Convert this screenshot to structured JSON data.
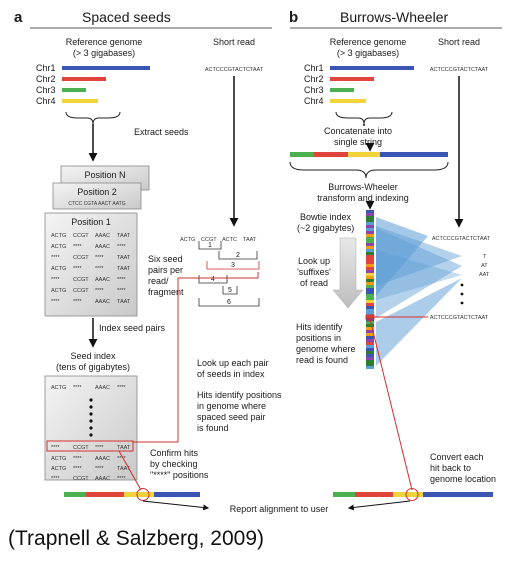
{
  "panel_a": {
    "letter": "a",
    "title": "Spaced seeds",
    "ref_genome_line1": "Reference genome",
    "ref_genome_line2": "(> 3 gigabases)",
    "short_read_label": "Short read",
    "short_read_seq": "ACTCCCGTACTCTAAT",
    "chromosomes": [
      {
        "label": "Chr1",
        "color": "#3b55b5"
      },
      {
        "label": "Chr2",
        "color": "#e0443a"
      },
      {
        "label": "Chr3",
        "color": "#4caf50"
      },
      {
        "label": "Chr4",
        "color": "#f2d43a"
      }
    ],
    "extract_seeds": "Extract seeds",
    "position_n": "Position N",
    "position_2": "Position 2",
    "position_2_seq": "CTCC CGTA AACT AATG",
    "position_1": "Position 1",
    "seed_rows": [
      [
        "ACTG",
        "CCGT",
        "AAAC",
        "TAAT"
      ],
      [
        "ACTG",
        "****",
        "AAAC",
        "****"
      ],
      [
        "****",
        "CCGT",
        "****",
        "TAAT"
      ],
      [
        "ACTG",
        "****",
        "****",
        "TAAT"
      ],
      [
        "****",
        "CCGT",
        "AAAC",
        "****"
      ],
      [
        "ACTG",
        "CCGT",
        "****",
        "****"
      ],
      [
        "****",
        "****",
        "AAAC",
        "TAAT"
      ]
    ],
    "read_seeds": [
      "ACTG",
      "CCGT",
      "ACTC",
      "TAAT"
    ],
    "pair_numbers": [
      "1",
      "2",
      "3",
      "4",
      "5",
      "6"
    ],
    "six_seed_pairs": [
      "Six seed",
      "pairs per",
      "read/",
      "fragment"
    ],
    "index_seed_pairs": "Index seed pairs",
    "seed_index_line1": "Seed index",
    "seed_index_line2": "(tens of gigabytes)",
    "index_rows_top": [
      "ACTG",
      "****",
      "AAAC",
      "****"
    ],
    "index_row_hit": [
      "****",
      "CCGT",
      "****",
      "TAAT"
    ],
    "index_rows_bottom": [
      [
        "ACTG",
        "****",
        "AAAC",
        "****"
      ],
      [
        "ACTG",
        "****",
        "****",
        "TAAT"
      ],
      [
        "****",
        "CCGT",
        "AAAC",
        "****"
      ]
    ],
    "lookup_text": [
      "Look up each pair",
      "of seeds in index"
    ],
    "hits_text": [
      "Hits identify positions",
      "in genome where",
      "spaced seed pair",
      "is found"
    ],
    "confirm_text": [
      "Confirm hits",
      "by checking",
      "\"****\" positions"
    ]
  },
  "panel_b": {
    "letter": "b",
    "title": "Burrows-Wheeler",
    "ref_genome_line1": "Reference genome",
    "ref_genome_line2": "(> 3 gigabases)",
    "short_read_label": "Short read",
    "short_read_seq": "ACTCCCGTACTCTAAT",
    "concat_text": [
      "Concatenate into",
      "single string"
    ],
    "bw_text": [
      "Burrows-Wheeler",
      "transform and indexing"
    ],
    "bowtie_text": [
      "Bowtie index",
      "(~2 gigabytes)"
    ],
    "lookup_text": [
      "Look up",
      "'suffixes'",
      "of read"
    ],
    "hits_text": [
      "Hits identify",
      "positions in",
      "genome where",
      "read is found"
    ],
    "suffix_labels": [
      "ACTCCCGTACTCTAAT",
      "T",
      "AT",
      "AAT",
      "ACTCCCGTACTCTAAT"
    ],
    "convert_text": [
      "Convert each",
      "hit back to",
      "genome location"
    ]
  },
  "report_text": "Report alignment to user",
  "citation": "(Trapnell & Salzberg, 2009)"
}
